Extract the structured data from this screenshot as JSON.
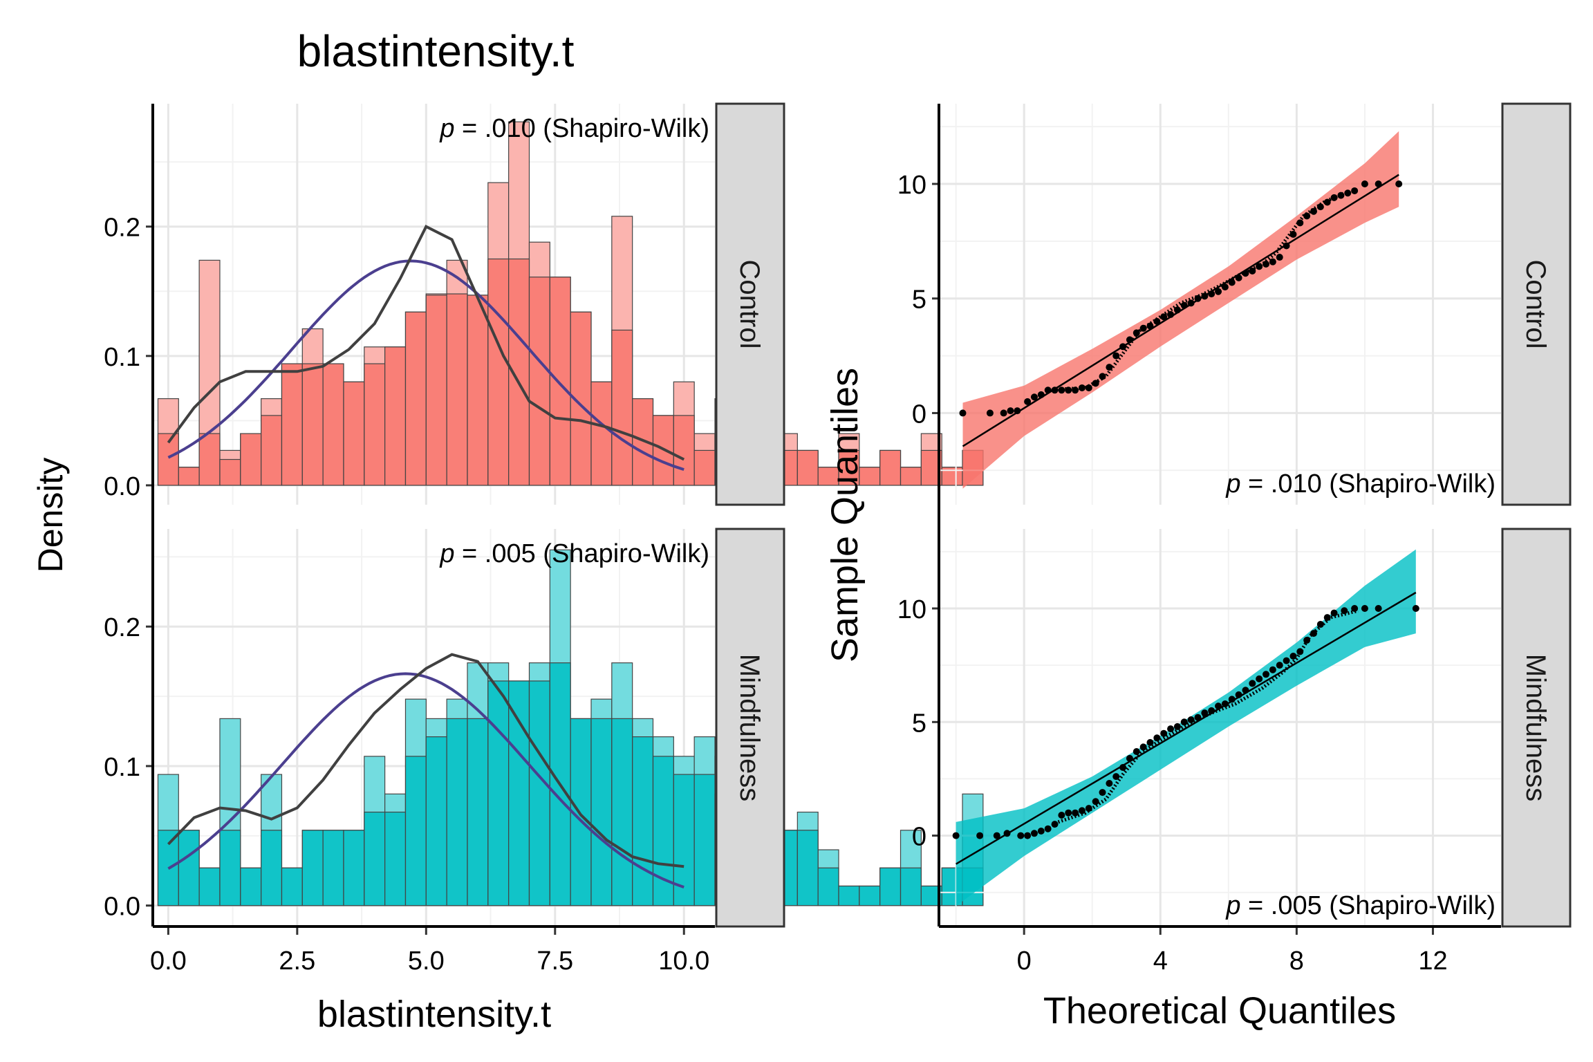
{
  "figure_title": "blastintensity.t",
  "chart_data": [
    {
      "type": "bar",
      "subtype": "histogram-with-density",
      "title": "blastintensity.t",
      "xlabel": "blastintensity.t",
      "ylabel": "Density",
      "xlim": [
        -0.3,
        10.6
      ],
      "x_ticks": [
        "0.0",
        "2.5",
        "5.0",
        "7.5",
        "10.0"
      ],
      "grid": true,
      "facets": [
        {
          "label": "Control",
          "color": "#F8766D",
          "annotation_p": "p",
          "annotation_rest": " = .010 (Shapiro-Wilk)",
          "ylim": [
            -0.015,
            0.295
          ],
          "y_ticks": [
            "0.0",
            "0.1",
            "0.2"
          ],
          "bins": {
            "start": -0.2,
            "width": 0.4,
            "values": [
              0.067,
              0.014,
              0.174,
              0.027,
              0.04,
              0.067,
              0.094,
              0.121,
              0.094,
              0.08,
              0.107,
              0.107,
              0.134,
              0.148,
              0.174,
              0.147,
              0.234,
              0.281,
              0.188,
              0.161,
              0.134,
              0.08,
              0.208,
              0.067,
              0.054,
              0.08,
              0.04,
              0.067,
              0.04,
              0.027,
              0.04,
              0.027,
              0.014,
              0.04,
              0.014,
              0.027,
              0.014,
              0.04,
              0.014,
              0.027
            ],
            "overlay": [
              0.04,
              0.014,
              0.04,
              0.02,
              0.04,
              0.054,
              0.094,
              0.094,
              0.094,
              0.08,
              0.094,
              0.107,
              0.134,
              0.147,
              0.148,
              0.147,
              0.175,
              0.175,
              0.161,
              0.161,
              0.134,
              0.08,
              0.12,
              0.067,
              0.054,
              0.054,
              0.027,
              0.04,
              0.027,
              0.027,
              0.027,
              0.027,
              0.014,
              0.027,
              0.014,
              0.027,
              0.014,
              0.027,
              0.014,
              0.027
            ]
          },
          "kde": {
            "x": [
              0,
              0.5,
              1,
              1.5,
              2,
              2.5,
              3,
              3.5,
              4,
              4.5,
              5,
              5.5,
              6,
              6.5,
              7,
              7.5,
              8,
              8.5,
              9,
              9.5,
              10
            ],
            "y": [
              0.033,
              0.06,
              0.08,
              0.088,
              0.088,
              0.088,
              0.092,
              0.105,
              0.125,
              0.16,
              0.2,
              0.19,
              0.145,
              0.1,
              0.065,
              0.052,
              0.05,
              0.045,
              0.038,
              0.03,
              0.02
            ]
          },
          "normal_curve": {
            "mean": 4.7,
            "sd": 2.3
          }
        },
        {
          "label": "Mindfulness",
          "color": "#00BFC4",
          "annotation_p": "p",
          "annotation_rest": " = .005 (Shapiro-Wilk)",
          "ylim": [
            -0.015,
            0.27
          ],
          "y_ticks": [
            "0.0",
            "0.1",
            "0.2"
          ],
          "bins": {
            "start": -0.2,
            "width": 0.4,
            "values": [
              0.094,
              0.054,
              0.027,
              0.134,
              0.027,
              0.094,
              0.027,
              0.054,
              0.054,
              0.054,
              0.107,
              0.08,
              0.148,
              0.134,
              0.148,
              0.174,
              0.174,
              0.161,
              0.174,
              0.255,
              0.134,
              0.148,
              0.174,
              0.134,
              0.121,
              0.107,
              0.121,
              0.107,
              0.094,
              0.094,
              0.054,
              0.067,
              0.04,
              0.014,
              0.014,
              0.027,
              0.054,
              0.014,
              0.027,
              0.08
            ],
            "overlay": [
              0.054,
              0.054,
              0.027,
              0.054,
              0.027,
              0.054,
              0.027,
              0.054,
              0.054,
              0.054,
              0.067,
              0.067,
              0.107,
              0.121,
              0.134,
              0.134,
              0.161,
              0.161,
              0.161,
              0.174,
              0.134,
              0.134,
              0.134,
              0.121,
              0.107,
              0.094,
              0.094,
              0.08,
              0.08,
              0.067,
              0.054,
              0.054,
              0.027,
              0.014,
              0.014,
              0.027,
              0.027,
              0.014,
              0.027,
              0.027
            ]
          },
          "kde": {
            "x": [
              0,
              0.5,
              1,
              1.5,
              2,
              2.5,
              3,
              3.5,
              4,
              4.5,
              5,
              5.5,
              6,
              6.5,
              7,
              7.5,
              8,
              8.5,
              9,
              9.5,
              10
            ],
            "y": [
              0.044,
              0.063,
              0.07,
              0.068,
              0.062,
              0.07,
              0.09,
              0.115,
              0.138,
              0.155,
              0.17,
              0.18,
              0.175,
              0.15,
              0.12,
              0.092,
              0.065,
              0.047,
              0.035,
              0.03,
              0.028
            ]
          },
          "normal_curve": {
            "mean": 4.6,
            "sd": 2.4
          }
        }
      ]
    },
    {
      "type": "scatter",
      "subtype": "qq-plot",
      "xlabel": "Theoretical Quantiles",
      "ylabel": "Sample Quantiles",
      "xlim": [
        -2.5,
        14
      ],
      "ylim": [
        -4,
        13.5
      ],
      "x_ticks": [
        0,
        4,
        8,
        12
      ],
      "y_ticks": [
        0,
        5,
        10
      ],
      "grid": true,
      "facets": [
        {
          "label": "Control",
          "color": "#F8766D",
          "annotation_p": "p",
          "annotation_rest": " = .010 (Shapiro-Wilk)",
          "line": {
            "x": [
              -1.8,
              11
            ],
            "y": [
              -1.45,
              10.4
            ]
          },
          "band": {
            "x": [
              -1.8,
              0,
              2,
              4,
              6,
              8,
              10,
              11
            ],
            "lower": [
              -3.3,
              -1.0,
              0.9,
              2.9,
              4.8,
              6.7,
              8.3,
              9.0
            ],
            "upper": [
              0.45,
              1.2,
              2.8,
              4.5,
              6.4,
              8.6,
              10.9,
              12.3
            ]
          },
          "quantile_curve": {
            "x": [
              1.2,
              1.8,
              2.4,
              2.9,
              3.4,
              4.0,
              4.6,
              5.2,
              5.8,
              6.4,
              7.0,
              7.4,
              7.8,
              8.2,
              8.8,
              9.4
            ],
            "y": [
              1.05,
              1.1,
              1.6,
              2.6,
              3.6,
              4.2,
              4.8,
              5.15,
              5.6,
              6.1,
              6.5,
              7.0,
              7.8,
              8.6,
              9.2,
              9.6
            ]
          },
          "points": {
            "x": [
              -1.8,
              -1.0,
              -0.6,
              -0.4,
              -0.2,
              0.1,
              0.3,
              0.5,
              0.7,
              0.9,
              1.1,
              1.3,
              1.5,
              1.7,
              1.9,
              2.1,
              2.3,
              2.5,
              2.7,
              2.9,
              3.1,
              3.3,
              3.5,
              3.7,
              3.9,
              4.1,
              4.3,
              4.5,
              4.7,
              4.9,
              5.1,
              5.3,
              5.5,
              5.7,
              5.9,
              6.1,
              6.3,
              6.5,
              6.7,
              6.9,
              7.1,
              7.3,
              7.5,
              7.7,
              7.9,
              8.1,
              8.3,
              8.5,
              8.7,
              8.9,
              9.1,
              9.3,
              9.5,
              9.7,
              10.0,
              10.4,
              11.0
            ],
            "y": [
              0,
              0,
              0,
              0.1,
              0.1,
              0.5,
              0.7,
              0.8,
              1.0,
              1.0,
              1.0,
              1.0,
              1.0,
              1.1,
              1.1,
              1.3,
              1.6,
              2.0,
              2.5,
              2.9,
              3.2,
              3.5,
              3.7,
              3.8,
              4.0,
              4.2,
              4.3,
              4.5,
              4.7,
              4.8,
              5.0,
              5.1,
              5.2,
              5.3,
              5.5,
              5.7,
              5.9,
              6.1,
              6.2,
              6.4,
              6.5,
              6.6,
              6.8,
              7.3,
              7.8,
              8.3,
              8.6,
              8.8,
              9.0,
              9.2,
              9.4,
              9.5,
              9.6,
              9.7,
              10.0,
              10.0,
              10.0
            ]
          }
        },
        {
          "label": "Mindfulness",
          "color": "#00BFC4",
          "annotation_p": "p",
          "annotation_rest": " = .005 (Shapiro-Wilk)",
          "line": {
            "x": [
              -2.0,
              11.5
            ],
            "y": [
              -1.25,
              10.7
            ]
          },
          "band": {
            "x": [
              -2.0,
              0,
              2,
              4,
              6,
              8,
              10,
              11.5
            ],
            "lower": [
              -3.1,
              -0.9,
              1.0,
              2.9,
              4.8,
              6.6,
              8.3,
              8.9
            ],
            "upper": [
              0.6,
              1.2,
              2.6,
              4.4,
              6.3,
              8.5,
              11.0,
              12.6
            ]
          },
          "quantile_curve": {
            "x": [
              1.0,
              1.8,
              2.4,
              2.9,
              3.4,
              4.0,
              4.8,
              5.5,
              6.2,
              7.0,
              7.6,
              8.0,
              8.4,
              9.0,
              9.8
            ],
            "y": [
              0.6,
              1.0,
              1.6,
              2.7,
              3.6,
              4.2,
              4.9,
              5.4,
              5.8,
              6.5,
              7.2,
              7.8,
              8.8,
              9.6,
              9.9
            ]
          },
          "points": {
            "x": [
              -2.0,
              -1.3,
              -0.8,
              -0.5,
              -0.1,
              0.1,
              0.3,
              0.5,
              0.7,
              0.9,
              1.1,
              1.3,
              1.5,
              1.7,
              1.9,
              2.1,
              2.3,
              2.5,
              2.7,
              2.9,
              3.1,
              3.3,
              3.5,
              3.7,
              3.9,
              4.1,
              4.3,
              4.5,
              4.7,
              4.9,
              5.1,
              5.3,
              5.5,
              5.7,
              5.9,
              6.1,
              6.3,
              6.5,
              6.7,
              6.9,
              7.1,
              7.3,
              7.5,
              7.7,
              7.9,
              8.1,
              8.3,
              8.5,
              8.7,
              8.9,
              9.1,
              9.4,
              9.7,
              10.0,
              10.4,
              11.5
            ],
            "y": [
              0,
              0,
              0,
              0.1,
              0,
              0,
              0.1,
              0.2,
              0.3,
              0.5,
              0.9,
              1.0,
              1.0,
              1.1,
              1.2,
              1.5,
              1.9,
              2.3,
              2.6,
              3.0,
              3.4,
              3.7,
              3.9,
              4.1,
              4.3,
              4.5,
              4.7,
              4.8,
              5.0,
              5.1,
              5.2,
              5.4,
              5.5,
              5.7,
              5.8,
              6.0,
              6.2,
              6.4,
              6.7,
              6.9,
              7.1,
              7.3,
              7.5,
              7.7,
              7.9,
              8.1,
              8.6,
              8.9,
              9.3,
              9.6,
              9.8,
              9.9,
              10.0,
              10.0,
              10.0,
              10.0
            ]
          }
        }
      ]
    }
  ]
}
